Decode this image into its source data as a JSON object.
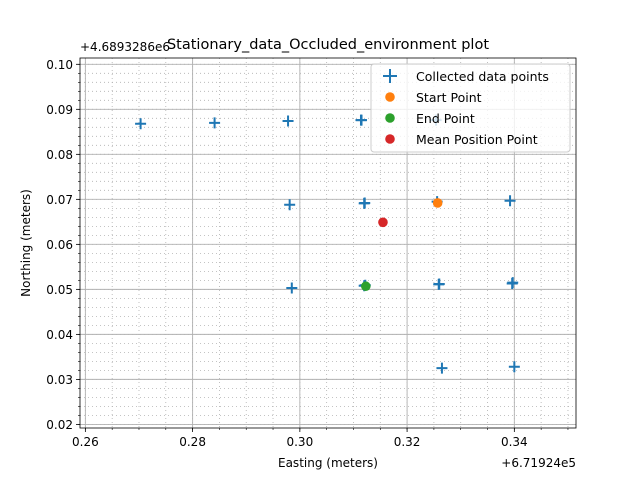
{
  "chart_data": {
    "type": "scatter",
    "title": "Stationary_data_Occluded_environment plot",
    "xlabel": "Easting (meters)",
    "ylabel": "Northing (meters)",
    "x_offset_label": "+6.71924e5",
    "y_offset_label": "+4.6893286e6",
    "xlim": [
      0.259,
      0.3515
    ],
    "ylim": [
      0.0192,
      0.1014
    ],
    "x_ticks": [
      0.26,
      0.28,
      0.3,
      0.32,
      0.34
    ],
    "x_tick_labels": [
      "0.26",
      "0.28",
      "0.30",
      "0.32",
      "0.34"
    ],
    "y_ticks": [
      0.02,
      0.03,
      0.04,
      0.05,
      0.06,
      0.07,
      0.08,
      0.09,
      0.1
    ],
    "y_tick_labels": [
      "0.02",
      "0.03",
      "0.04",
      "0.05",
      "0.06",
      "0.07",
      "0.08",
      "0.09",
      "0.10"
    ],
    "x_minor_step": 0.005,
    "y_minor_step": 0.002,
    "grid": true,
    "legend_position": "top-right",
    "series": [
      {
        "name": "Collected data points",
        "marker": "plus",
        "color": "#1f77b4",
        "points": [
          [
            0.2703,
            0.0868
          ],
          [
            0.2841,
            0.087
          ],
          [
            0.2978,
            0.0874
          ],
          [
            0.3114,
            0.0876
          ],
          [
            0.3115,
            0.0876
          ],
          [
            0.3254,
            0.0876
          ],
          [
            0.2981,
            0.0688
          ],
          [
            0.312,
            0.0691
          ],
          [
            0.3121,
            0.0692
          ],
          [
            0.3256,
            0.0695
          ],
          [
            0.3392,
            0.0697
          ],
          [
            0.2985,
            0.0503
          ],
          [
            0.312,
            0.0508
          ],
          [
            0.3122,
            0.0509
          ],
          [
            0.3259,
            0.0511
          ],
          [
            0.326,
            0.0512
          ],
          [
            0.3397,
            0.0515
          ],
          [
            0.3396,
            0.0513
          ],
          [
            0.3265,
            0.0325
          ],
          [
            0.34,
            0.0328
          ]
        ]
      },
      {
        "name": "Start Point",
        "marker": "circle",
        "color": "#ff7f0e",
        "points": [
          [
            0.3257,
            0.0692
          ]
        ]
      },
      {
        "name": "End Point",
        "marker": "circle",
        "color": "#2ca02c",
        "points": [
          [
            0.3123,
            0.0507
          ]
        ]
      },
      {
        "name": "Mean Position Point",
        "marker": "circle",
        "color": "#d62728",
        "points": [
          [
            0.3155,
            0.0649
          ]
        ]
      }
    ]
  }
}
